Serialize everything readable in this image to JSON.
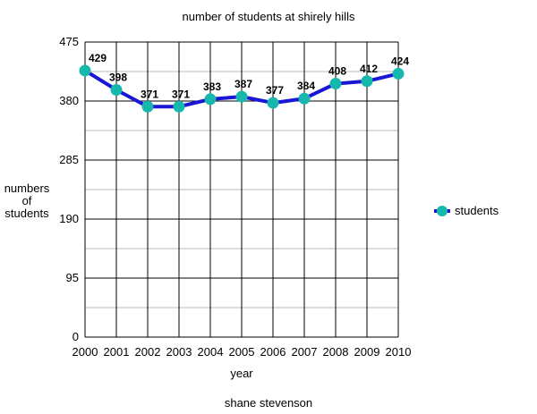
{
  "chart_data": {
    "type": "line",
    "title": "number of students at shirely hills",
    "xlabel": "year",
    "ylabel_lines": [
      "numbers",
      "of",
      "students"
    ],
    "caption": "shane stevenson",
    "categories": [
      "2000",
      "2001",
      "2002",
      "2003",
      "2004",
      "2005",
      "2006",
      "2007",
      "2008",
      "2009",
      "2010"
    ],
    "series": [
      {
        "name": "students",
        "values": [
          429,
          398,
          371,
          371,
          383,
          387,
          377,
          384,
          408,
          412,
          424
        ]
      }
    ],
    "ylim": [
      0,
      475
    ],
    "yticks": [
      0,
      95,
      190,
      285,
      380,
      475
    ],
    "grid": true,
    "legend_position": "right",
    "colors": {
      "line": "#1a16d6",
      "marker": "#16b8ae",
      "grid_major": "#000000",
      "grid_minor": "#b9b9b9"
    }
  }
}
